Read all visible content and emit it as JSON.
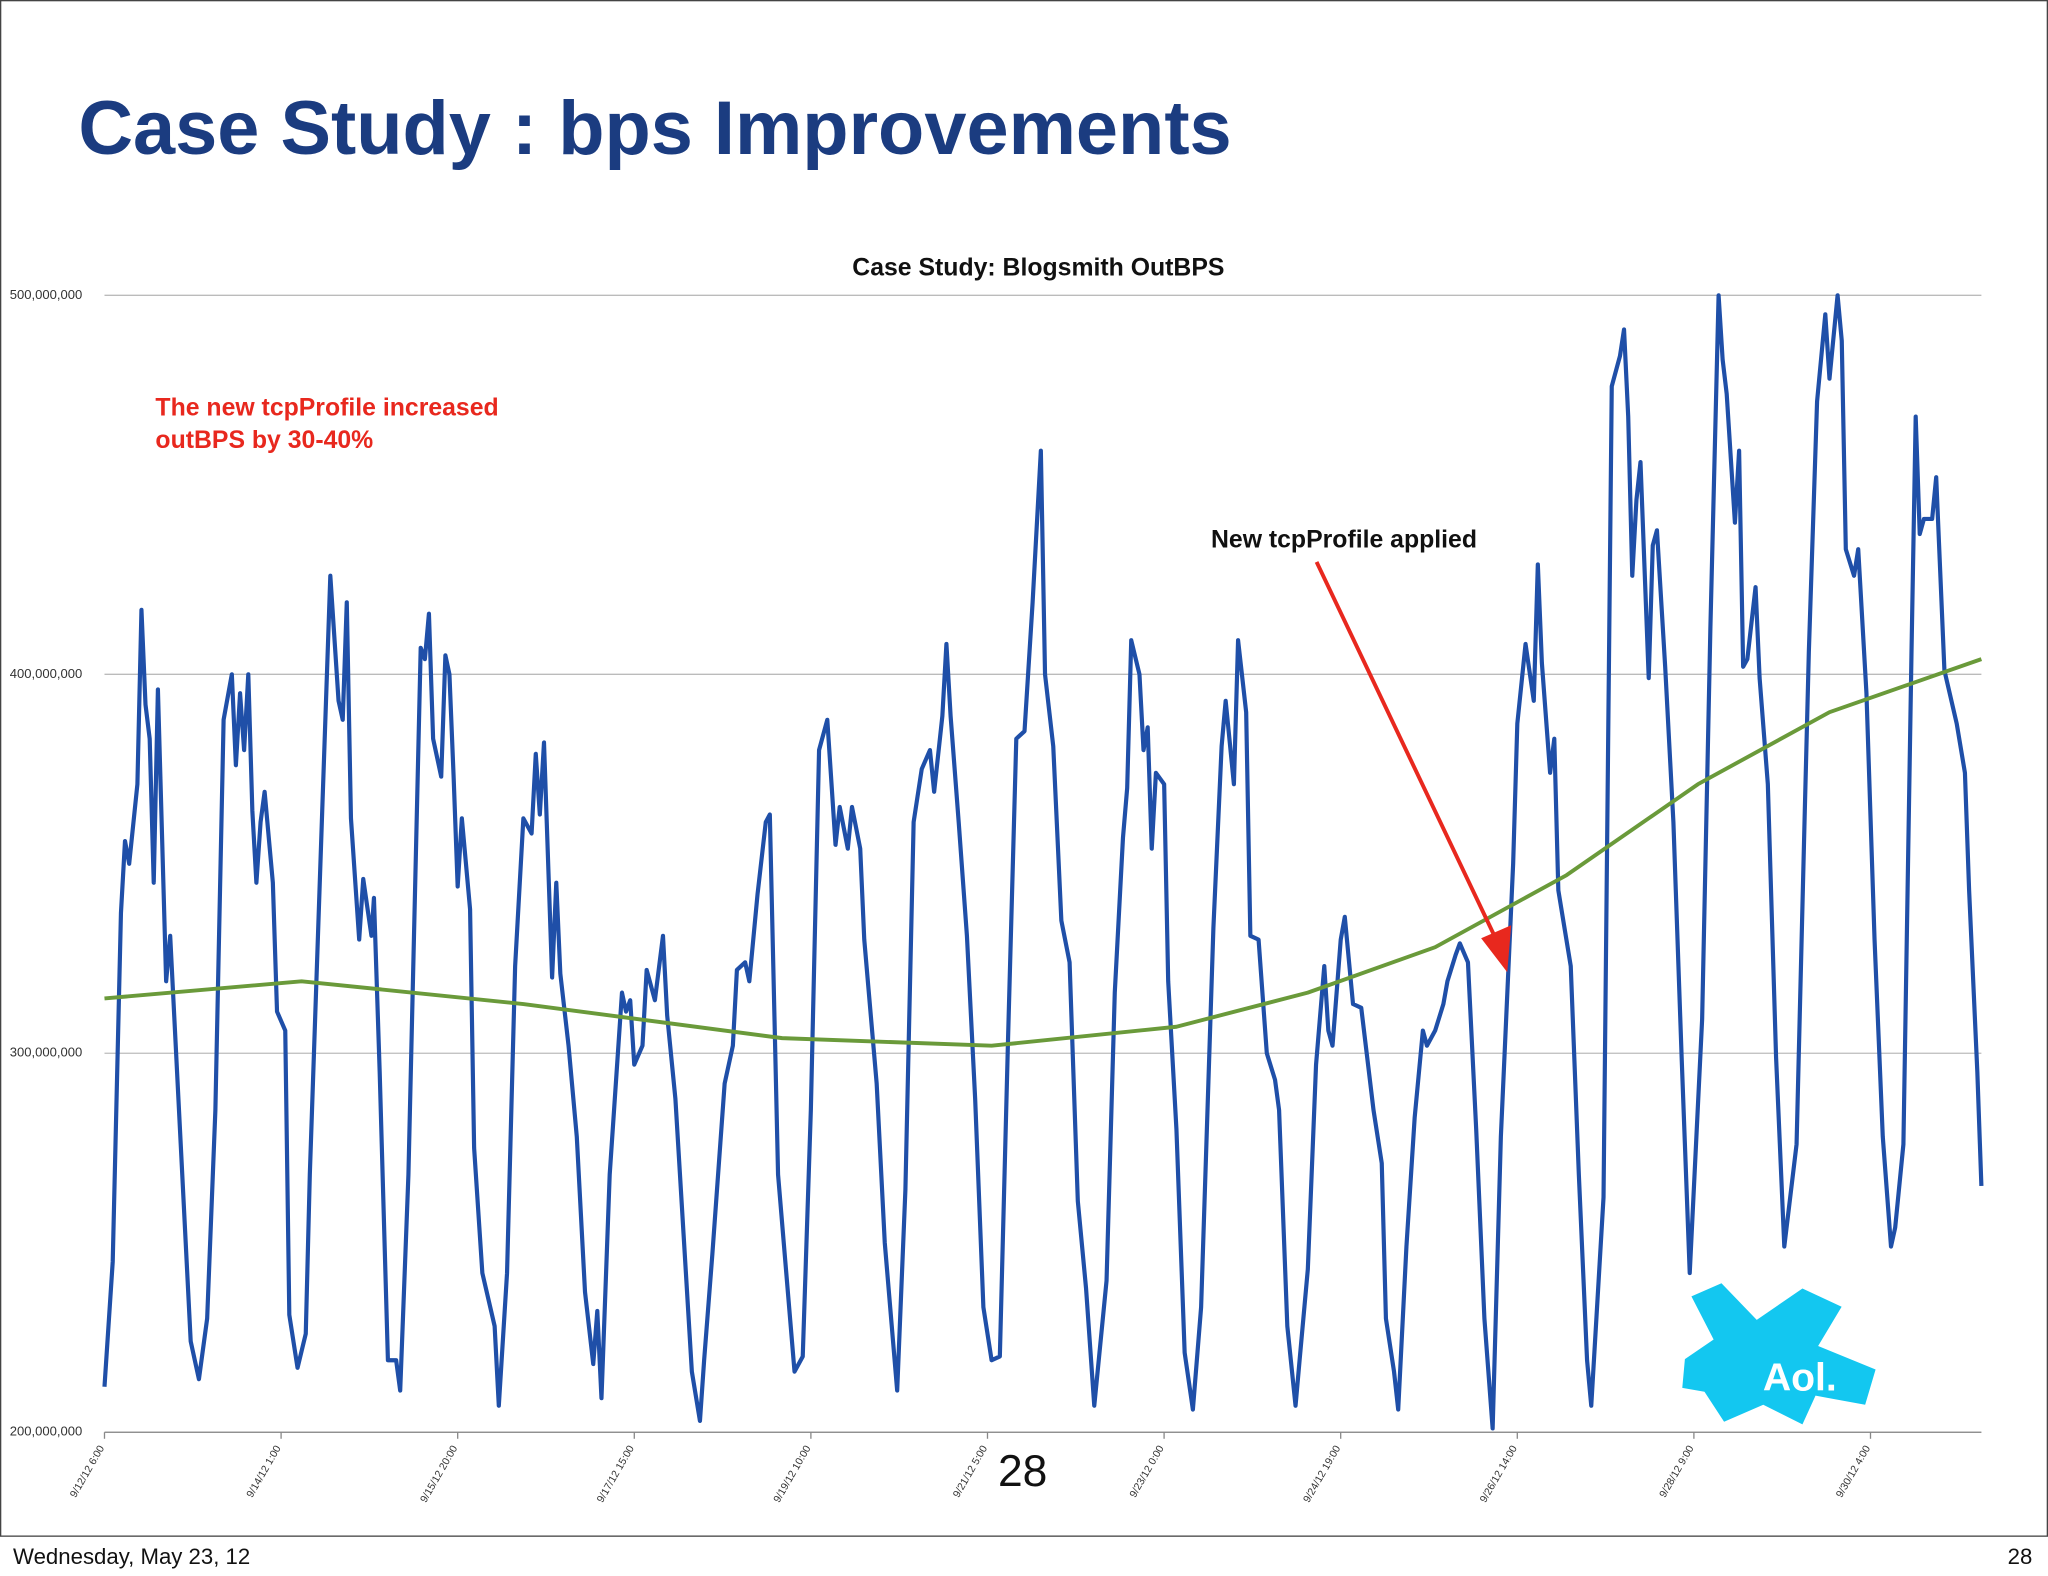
{
  "slide": {
    "title": "Case Study : bps Improvements",
    "footer_date": "Wednesday, May 23, 12",
    "page_number": "28",
    "overlay_number": "28",
    "logo": "Aol."
  },
  "chart_data": {
    "type": "line",
    "title": "Case Study: Blogsmith OutBPS",
    "annotations": [
      {
        "lines": [
          "The new tcpProfile increased",
          "outBPS by 30-40%"
        ]
      },
      {
        "lines": [
          "New tcpProfile applied"
        ]
      }
    ],
    "xlim": [
      0,
      457
    ],
    "xticks": [
      {
        "value": 0,
        "label": "9/12/12 6:00"
      },
      {
        "value": 43,
        "label": "9/14/12 1:00"
      },
      {
        "value": 86,
        "label": "9/15/12 20:00"
      },
      {
        "value": 129,
        "label": "9/17/12 15:00"
      },
      {
        "value": 172,
        "label": "9/19/12 10:00"
      },
      {
        "value": 215,
        "label": "9/21/12 5:00"
      },
      {
        "value": 258,
        "label": "9/23/12 0:00"
      },
      {
        "value": 301,
        "label": "9/24/12 19:00"
      },
      {
        "value": 344,
        "label": "9/26/12 14:00"
      },
      {
        "value": 387,
        "label": "9/28/12 9:00"
      },
      {
        "value": 430,
        "label": "9/30/12 4:00"
      }
    ],
    "ylim": [
      200000000,
      500000000
    ],
    "yticks": [
      {
        "value": 200000000,
        "label": "200,000,000"
      },
      {
        "value": 300000000,
        "label": "300,000,000"
      },
      {
        "value": 400000000,
        "label": "400,000,000"
      },
      {
        "value": 500000000,
        "label": "500,000,000"
      }
    ],
    "grid": true,
    "series": [
      {
        "color": "#1f4fa8",
        "x": [
          0,
          2,
          4,
          5,
          6,
          8,
          9,
          10,
          11,
          12,
          13,
          15,
          16,
          18,
          21,
          23,
          25,
          27,
          29,
          31,
          32,
          33,
          34,
          35,
          36,
          37,
          38,
          39,
          41,
          42,
          44,
          45,
          47,
          49,
          50,
          53,
          55,
          57,
          58,
          59,
          60,
          62,
          63,
          65,
          65.6,
          67,
          69,
          71,
          72,
          74,
          77,
          78,
          79,
          80,
          82,
          83,
          84,
          85,
          86,
          87,
          89,
          90,
          92,
          95,
          96,
          98,
          100,
          102,
          104,
          105,
          106,
          107,
          109,
          110,
          111,
          113,
          115,
          117,
          119,
          120,
          121,
          123,
          126,
          127,
          128,
          129,
          131,
          132,
          134,
          136,
          137,
          139,
          141,
          143,
          145,
          146,
          148,
          151,
          153,
          154,
          156,
          157,
          159,
          161,
          162,
          164,
          168,
          170,
          172,
          174,
          176,
          178,
          179,
          181,
          182,
          184,
          185,
          188,
          190,
          193,
          195,
          197,
          199,
          201,
          202,
          204,
          205,
          206,
          208,
          210,
          212,
          214,
          216,
          218,
          220,
          222,
          224,
          226,
          228,
          229,
          231,
          233,
          235,
          237,
          239,
          241,
          244,
          246,
          248,
          249,
          250,
          252,
          253,
          254,
          255,
          256,
          258,
          259,
          261,
          263,
          265,
          267,
          270,
          272,
          273,
          275,
          276,
          278,
          279,
          281,
          283,
          285,
          286,
          288,
          290,
          291,
          293,
          295,
          297,
          298,
          299,
          301,
          302,
          304,
          306,
          309,
          311,
          312,
          314,
          315,
          317,
          319,
          321,
          322,
          324,
          326,
          327,
          329,
          330,
          332,
          334,
          336,
          338,
          340,
          343,
          344,
          346,
          348,
          349,
          350,
          352,
          353,
          354,
          357,
          359,
          361,
          362,
          365,
          367,
          369,
          370,
          371,
          372,
          373,
          374,
          376,
          377,
          378,
          380,
          382,
          384,
          386,
          389,
          391,
          393,
          394,
          395,
          397,
          398,
          399,
          400,
          402,
          403,
          405,
          407,
          409,
          412,
          414,
          415,
          417,
          419,
          420,
          422,
          423,
          424,
          426,
          427,
          429,
          431,
          433,
          435,
          436,
          438,
          440,
          441,
          442,
          443,
          445,
          446,
          448,
          451,
          453,
          454,
          456,
          457
        ],
        "values": [
          212000000.0,
          245000000.0,
          337000000.0,
          356000000.0,
          350000000.0,
          371000000.0,
          417000000.0,
          392000000.0,
          383000000.0,
          345000000.0,
          396000000.0,
          319000000.0,
          331000000.0,
          288000000.0,
          224000000.0,
          214000000.0,
          230000000.0,
          285000000.0,
          388000000.0,
          400000000.0,
          376000000.0,
          395000000.0,
          380000000.0,
          400000000.0,
          364000000.0,
          345000000.0,
          361000000.0,
          369000000.0,
          345000000.0,
          311000000.0,
          306000000.0,
          231000000.0,
          217000000.0,
          226000000.0,
          268000000.0,
          364000000.0,
          426000000.0,
          393000000.0,
          388000000.0,
          419000000.0,
          362000000.0,
          330000000.0,
          346000000.0,
          331000000.0,
          341000000.0,
          295000000.0,
          219000000.0,
          219000000.0,
          211000000.0,
          268000000.0,
          407000000.0,
          404000000.0,
          416000000.0,
          383000000.0,
          373000000.0,
          405000000.0,
          400000000.0,
          373000000.0,
          344000000.0,
          362000000.0,
          338000000.0,
          275000000.0,
          242000000.0,
          228000000.0,
          207000000.0,
          242000000.0,
          323000000.0,
          362000000.0,
          358000000.0,
          379000000.0,
          363000000.0,
          382000000.0,
          320000000.0,
          345000000.0,
          321000000.0,
          302000000.0,
          278000000.0,
          237000000.0,
          218000000.0,
          232000000.0,
          209000000.0,
          268000000.0,
          316000000.0,
          311000000.0,
          314000000.0,
          297000000.0,
          302000000.0,
          322000000.0,
          314000000.0,
          331000000.0,
          310000000.0,
          288000000.0,
          252000000.0,
          216000000.0,
          203000000.0,
          219000000.0,
          247000000.0,
          292000000.0,
          302000000.0,
          322000000.0,
          324000000.0,
          319000000.0,
          342000000.0,
          361000000.0,
          363000000.0,
          268000000.0,
          216000000.0,
          220000000.0,
          285000000.0,
          380000000.0,
          388000000.0,
          355000000.0,
          365000000.0,
          354000000.0,
          365000000.0,
          354000000.0,
          330000000.0,
          292000000.0,
          250000000.0,
          211000000.0,
          264000000.0,
          361000000.0,
          375000000.0,
          380000000.0,
          369000000.0,
          389000000.0,
          408000000.0,
          389000000.0,
          361000000.0,
          331000000.0,
          288000000.0,
          233000000.0,
          219000000.0,
          220000000.0,
          304000000.0,
          383000000.0,
          385000000.0,
          419000000.0,
          459000000.0,
          400000000.0,
          381000000.0,
          335000000.0,
          324000000.0,
          261000000.0,
          238000000.0,
          207000000.0,
          240000000.0,
          316000000.0,
          357000000.0,
          370000000.0,
          409000000.0,
          400000000.0,
          380000000.0,
          386000000.0,
          354000000.0,
          374000000.0,
          371000000.0,
          319000000.0,
          280000000.0,
          221000000.0,
          206000000.0,
          233000000.0,
          333000000.0,
          381000000.0,
          393000000.0,
          371000000.0,
          409000000.0,
          390000000.0,
          331000000.0,
          330000000.0,
          300000000.0,
          293000000.0,
          285000000.0,
          228000000.0,
          207000000.0,
          219000000.0,
          243000000.0,
          297000000.0,
          323000000.0,
          306000000.0,
          302000000.0,
          330000000.0,
          336000000.0,
          313000000.0,
          312000000.0,
          285000000.0,
          271000000.0,
          230000000.0,
          216000000.0,
          206000000.0,
          249000000.0,
          283000000.0,
          306000000.0,
          302000000.0,
          306000000.0,
          313000000.0,
          319000000.0,
          326000000.0,
          329000000.0,
          324000000.0,
          280000000.0,
          230000000.0,
          201000000.0,
          278000000.0,
          350000000.0,
          387000000.0,
          408000000.0,
          393000000.0,
          429000000.0,
          403000000.0,
          374000000.0,
          383000000.0,
          343000000.0,
          323000000.0,
          268000000.0,
          219000000.0,
          207000000.0,
          262000000.0,
          476000000.0,
          484000000.0,
          491000000.0,
          468000000.0,
          426000000.0,
          446000000.0,
          456000000.0,
          399000000.0,
          434000000.0,
          438000000.0,
          402000000.0,
          361000000.0,
          299000000.0,
          242000000.0,
          309000000.0,
          412000000.0,
          500000000.0,
          483000000.0,
          474000000.0,
          440000000.0,
          459000000.0,
          402000000.0,
          404000000.0,
          423000000.0,
          399000000.0,
          371000000.0,
          299000000.0,
          249000000.0,
          276000000.0,
          364000000.0,
          406000000.0,
          472000000.0,
          495000000.0,
          478000000.0,
          500000000.0,
          488000000.0,
          433000000.0,
          426000000.0,
          433000000.0,
          395000000.0,
          330000000.0,
          278000000.0,
          249000000.0,
          254000000.0,
          276000000.0,
          406000000.0,
          468000000.0,
          437000000.0,
          441000000.0,
          441000000.0,
          452000000.0,
          401000000.0,
          387000000.0,
          374000000.0,
          343000000.0,
          295000000.0,
          265000000.0
        ]
      },
      {
        "color": "#6a9a3a",
        "x": [
          0,
          48,
          102,
          165,
          216,
          261,
          293,
          324,
          356,
          388,
          420,
          457
        ],
        "values": [
          314500000.0,
          319000000.0,
          313000000.0,
          304000000.0,
          302000000.0,
          307000000.0,
          316000000.0,
          328000000.0,
          347000000.0,
          371000000.0,
          390000000.0,
          404000000.0
        ]
      }
    ]
  }
}
